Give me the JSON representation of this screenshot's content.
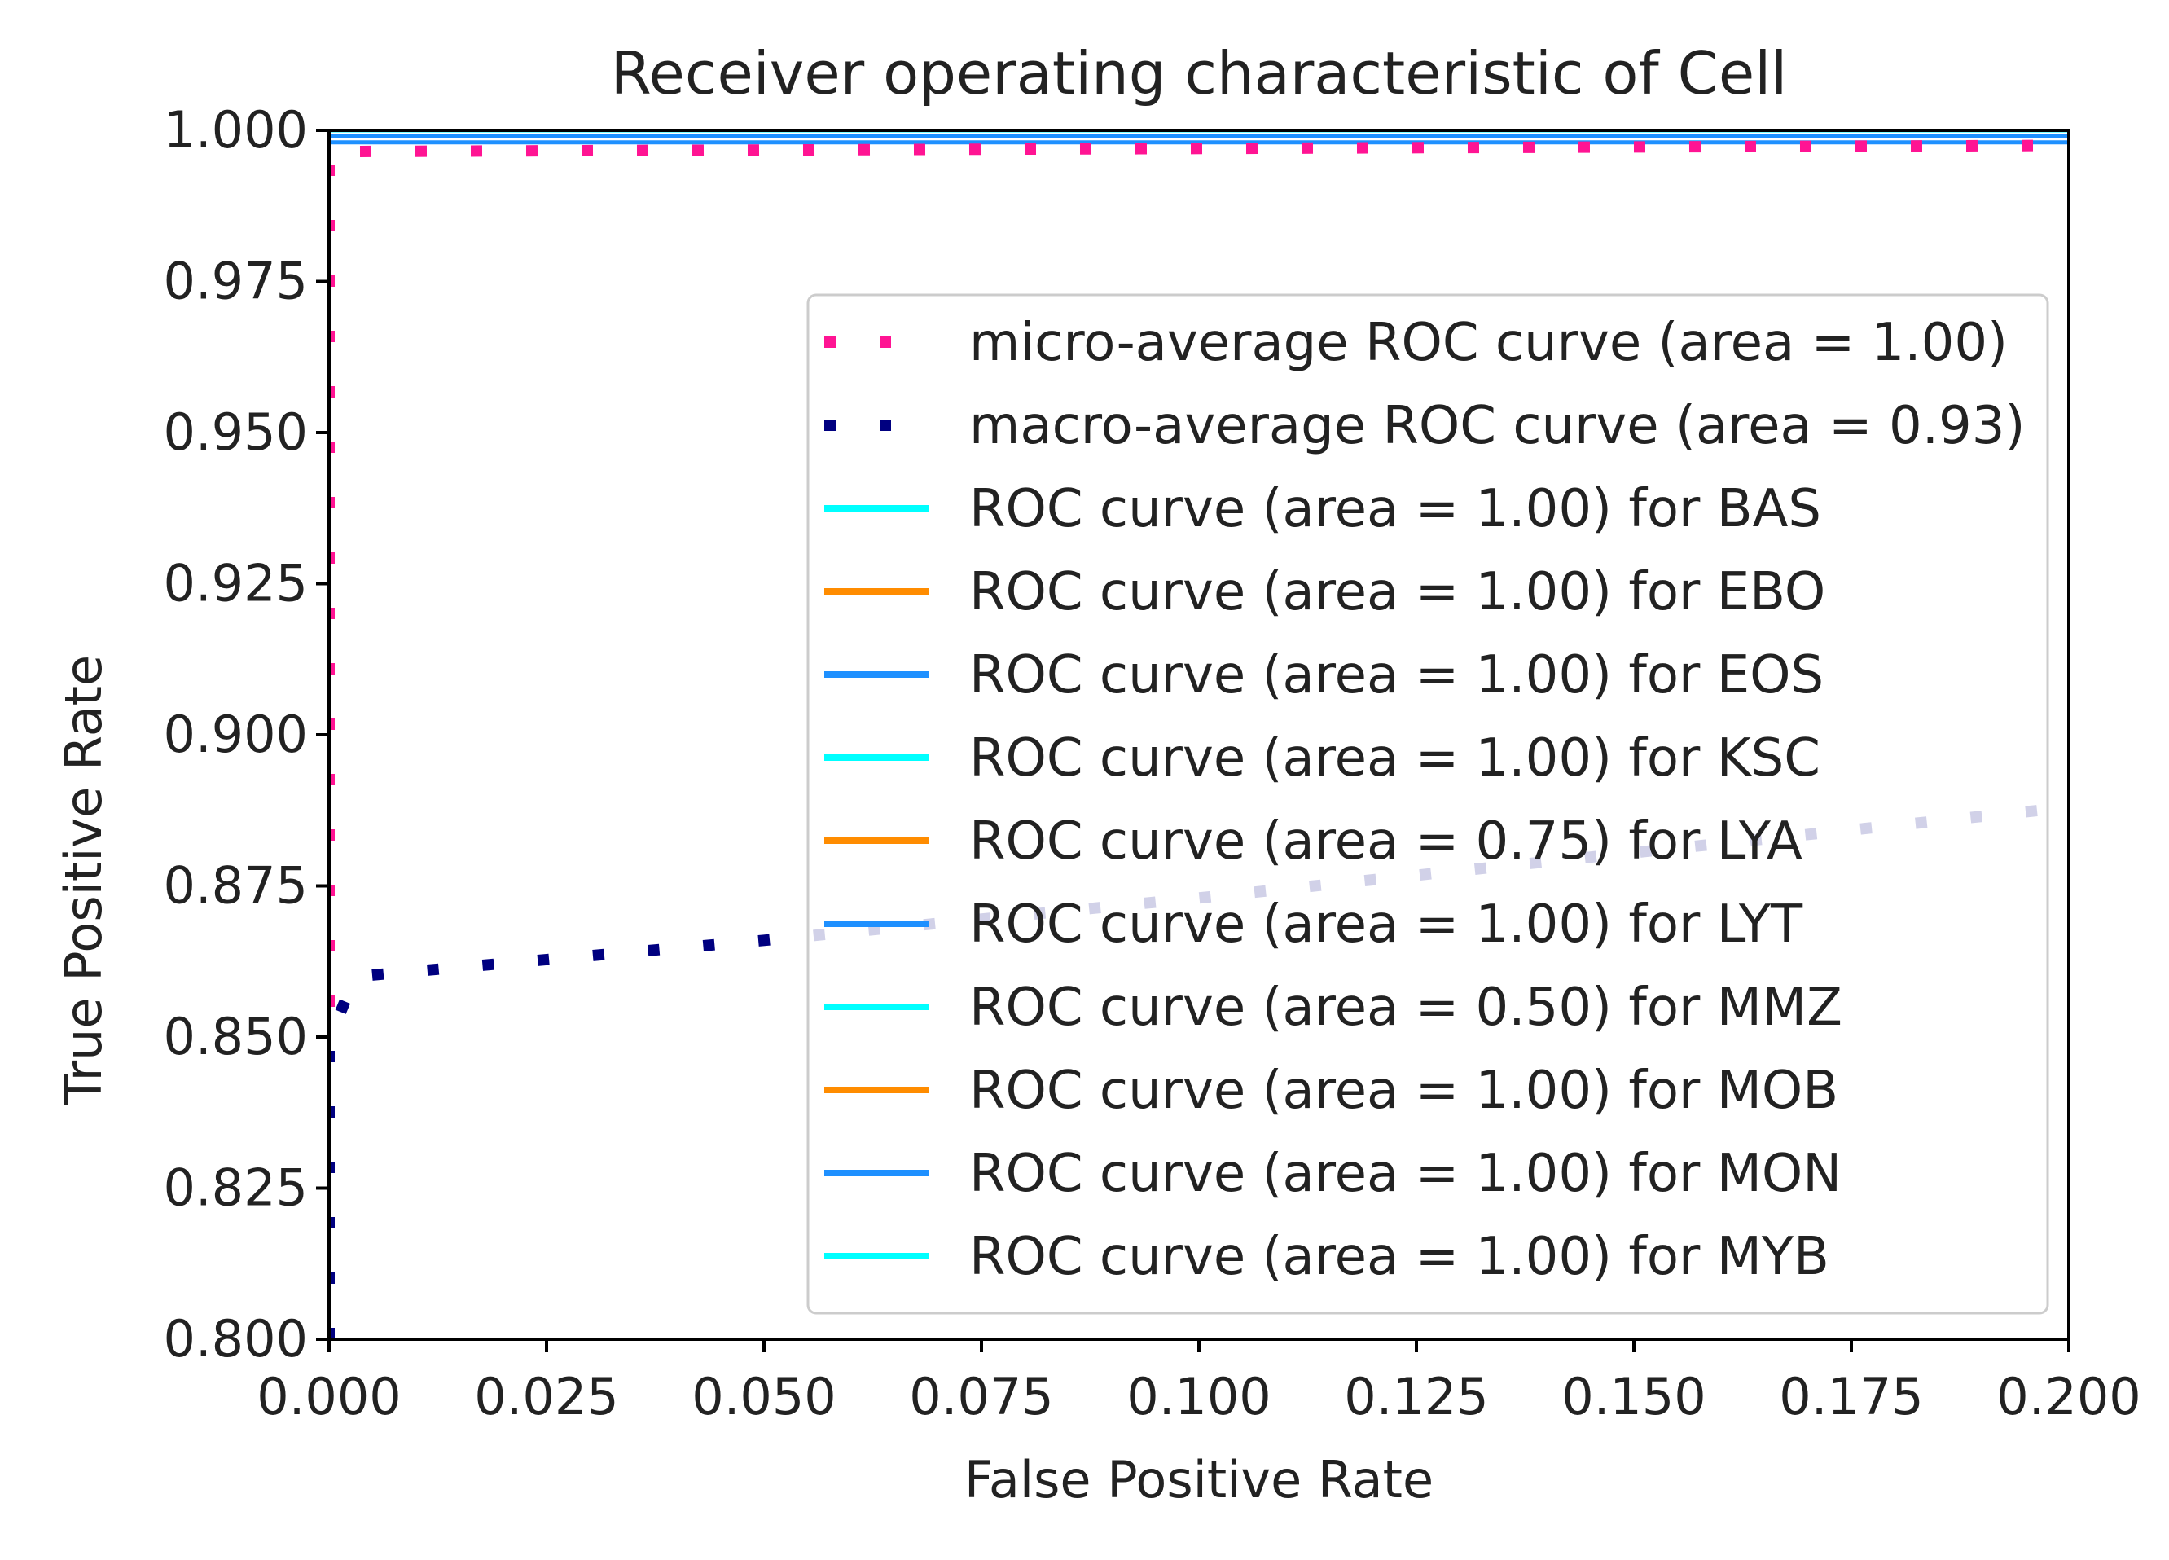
{
  "chart_data": {
    "type": "line",
    "title": "Receiver operating characteristic of Cell",
    "xlabel": "False Positive Rate",
    "ylabel": "True Positive Rate",
    "xlim": [
      0.0,
      0.2
    ],
    "ylim": [
      0.8,
      1.0
    ],
    "xticks": [
      "0.000",
      "0.025",
      "0.050",
      "0.075",
      "0.100",
      "0.125",
      "0.150",
      "0.175",
      "0.200"
    ],
    "yticks": [
      "0.800",
      "0.825",
      "0.850",
      "0.875",
      "0.900",
      "0.925",
      "0.950",
      "0.975",
      "1.000"
    ],
    "grid": false,
    "legend_position": "lower-right",
    "series": [
      {
        "name": "micro-average ROC curve (area = 1.00)",
        "color": "#ff1493",
        "style": "dotted",
        "x": [
          0.0,
          0.0,
          0.002,
          0.2
        ],
        "y": [
          0.8,
          0.9965,
          0.9965,
          0.9975
        ]
      },
      {
        "name": "macro-average ROC curve (area = 0.93)",
        "color": "#000080",
        "style": "dotted",
        "x": [
          0.0,
          0.0,
          0.001,
          0.003,
          0.05,
          0.1,
          0.2
        ],
        "y": [
          0.8,
          0.852,
          0.853,
          0.86,
          0.866,
          0.873,
          0.888
        ]
      },
      {
        "name": "ROC curve (area = 1.00) for BAS",
        "color": "#00ffff",
        "style": "solid",
        "x": [
          0.0,
          0.0,
          0.2
        ],
        "y": [
          0.8,
          1.0,
          1.0
        ]
      },
      {
        "name": "ROC curve (area = 1.00) for EBO",
        "color": "#ff8c00",
        "style": "solid",
        "x": [
          0.0,
          0.0,
          0.2
        ],
        "y": [
          0.8,
          1.0,
          1.0
        ]
      },
      {
        "name": "ROC curve (area = 1.00) for EOS",
        "color": "#1e90ff",
        "style": "solid",
        "x": [
          0.0,
          0.0,
          0.2
        ],
        "y": [
          0.8,
          1.0,
          1.0
        ]
      },
      {
        "name": "ROC curve (area = 1.00) for KSC",
        "color": "#00ffff",
        "style": "solid",
        "x": [
          0.0,
          0.0,
          0.2
        ],
        "y": [
          0.8,
          1.0,
          1.0
        ]
      },
      {
        "name": "ROC curve (area = 0.75) for LYA",
        "color": "#ff8c00",
        "style": "solid",
        "x": [
          0.0,
          0.0,
          0.2
        ],
        "y": [
          0.8,
          1.0,
          1.0
        ]
      },
      {
        "name": "ROC curve (area = 1.00) for LYT",
        "color": "#1e90ff",
        "style": "solid",
        "x": [
          0.0,
          0.0,
          0.2
        ],
        "y": [
          0.8,
          0.998,
          0.998
        ]
      },
      {
        "name": "ROC curve (area = 0.50) for MMZ",
        "color": "#00ffff",
        "style": "solid",
        "x": [
          0.0,
          0.0,
          0.2
        ],
        "y": [
          0.8,
          1.0,
          1.0
        ]
      },
      {
        "name": "ROC curve (area = 1.00) for MOB",
        "color": "#ff8c00",
        "style": "solid",
        "x": [
          0.0,
          0.0,
          0.2
        ],
        "y": [
          0.8,
          1.0,
          1.0
        ]
      },
      {
        "name": "ROC curve (area = 1.00) for MON",
        "color": "#1e90ff",
        "style": "solid",
        "x": [
          0.0,
          0.0,
          0.2
        ],
        "y": [
          0.8,
          0.999,
          0.999
        ]
      },
      {
        "name": "ROC curve (area = 1.00) for MYB",
        "color": "#00ffff",
        "style": "solid",
        "x": [
          0.0,
          0.0,
          0.2
        ],
        "y": [
          0.8,
          1.0,
          1.0
        ]
      }
    ]
  }
}
